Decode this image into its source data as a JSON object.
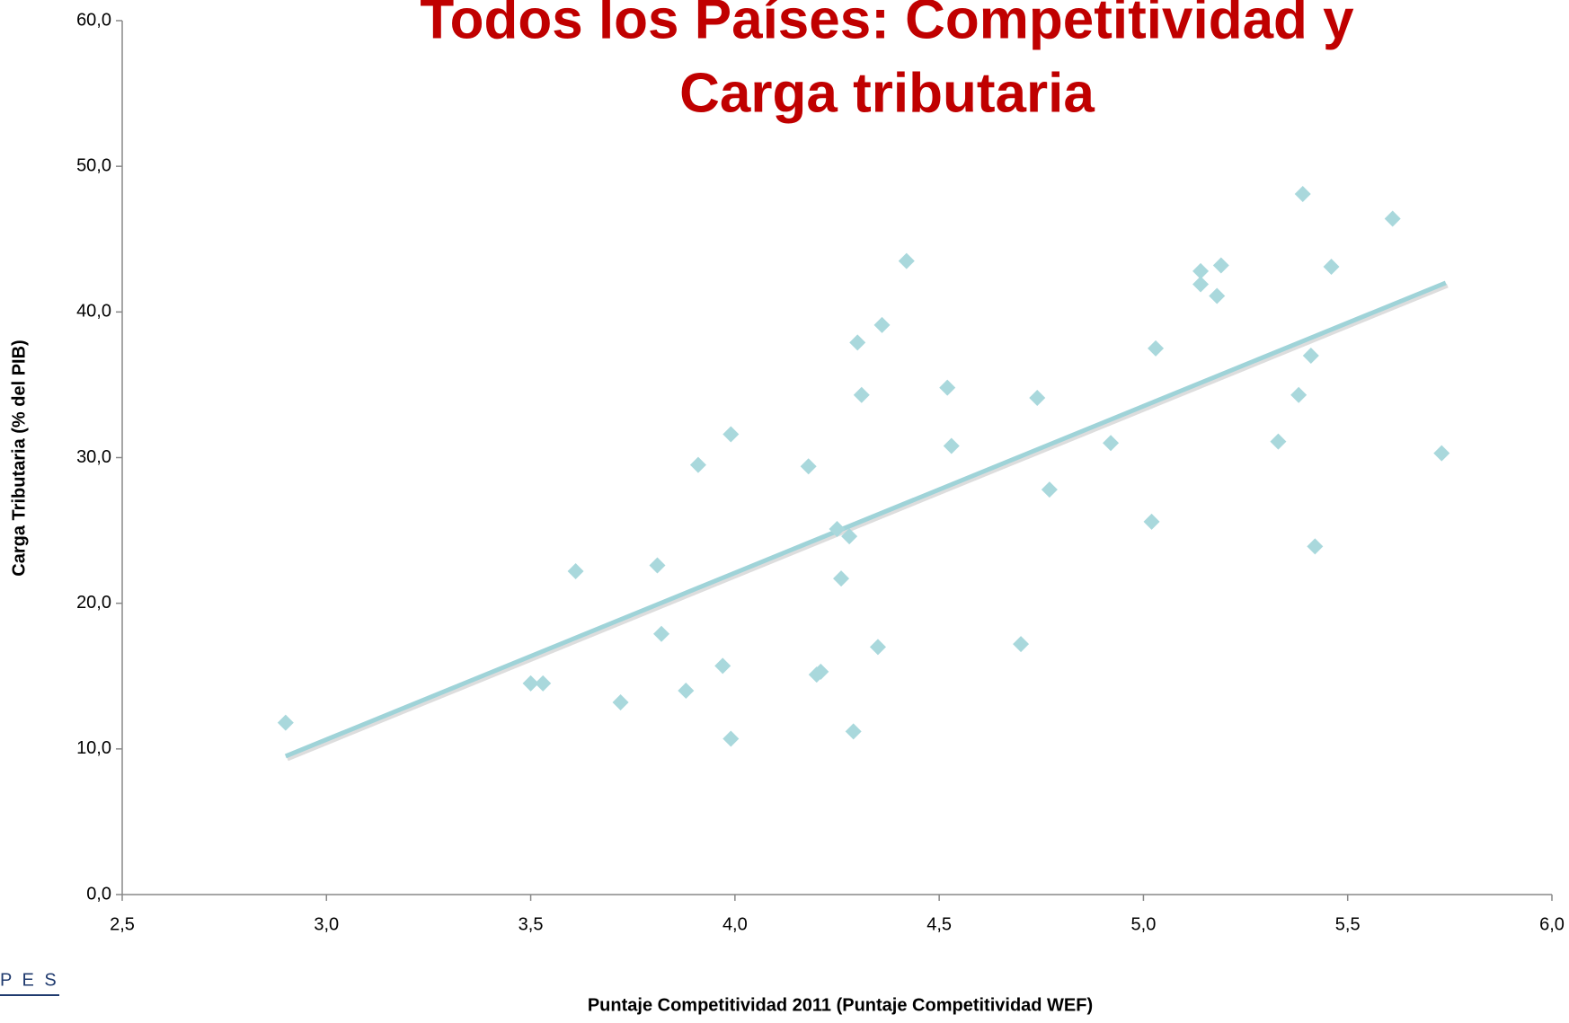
{
  "chart_data": {
    "type": "scatter",
    "title_lines": [
      "Todos los Países: Competitividad y",
      "Carga tributaria"
    ],
    "x_label": "Puntaje Competitividad 2011 (Puntaje Competitividad WEF)",
    "y_label": "Carga Tributaria (% del PIB)",
    "logo_text": "P E S",
    "color": "#a9d8dc",
    "xlim": [
      2.5,
      6.0
    ],
    "ylim": [
      0,
      60
    ],
    "xticks": [
      {
        "value": 2.5,
        "label": "2,5"
      },
      {
        "value": 3.0,
        "label": "3,0"
      },
      {
        "value": 3.5,
        "label": "3,5"
      },
      {
        "value": 4.0,
        "label": "4,0"
      },
      {
        "value": 4.5,
        "label": "4,5"
      },
      {
        "value": 5.0,
        "label": "5,0"
      },
      {
        "value": 5.5,
        "label": "5,5"
      },
      {
        "value": 6.0,
        "label": "6,0"
      }
    ],
    "yticks": [
      {
        "value": 0,
        "label": "0,0"
      },
      {
        "value": 10,
        "label": "10,0"
      },
      {
        "value": 20,
        "label": "20,0"
      },
      {
        "value": 30,
        "label": "30,0"
      },
      {
        "value": 40,
        "label": "40,0"
      },
      {
        "value": 50,
        "label": "50,0"
      },
      {
        "value": 60,
        "label": "60,0"
      }
    ],
    "x": [
      2.9,
      3.5,
      3.53,
      3.61,
      3.72,
      3.81,
      3.82,
      3.88,
      3.91,
      3.97,
      3.99,
      3.99,
      4.18,
      4.2,
      4.21,
      4.25,
      4.26,
      4.28,
      4.29,
      4.3,
      4.31,
      4.35,
      4.36,
      4.42,
      4.52,
      4.53,
      4.7,
      4.74,
      4.77,
      4.92,
      5.02,
      5.03,
      5.14,
      5.14,
      5.18,
      5.19,
      5.33,
      5.38,
      5.39,
      5.41,
      5.42,
      5.46,
      5.61,
      5.73
    ],
    "values": [
      11.8,
      14.5,
      14.5,
      22.2,
      13.2,
      22.6,
      17.9,
      14.0,
      29.5,
      15.7,
      31.6,
      10.7,
      29.4,
      15.1,
      15.3,
      25.1,
      21.7,
      24.6,
      11.2,
      37.9,
      34.3,
      17.0,
      39.1,
      43.5,
      34.8,
      30.8,
      17.2,
      34.1,
      27.8,
      31.0,
      25.6,
      37.5,
      42.8,
      41.9,
      41.1,
      43.2,
      31.1,
      34.3,
      48.1,
      37.0,
      23.9,
      43.1,
      46.4,
      30.3
    ],
    "trendline": {
      "color": "#9fd3d8",
      "x": [
        2.9,
        5.74
      ],
      "y": [
        9.5,
        42.0
      ]
    }
  }
}
